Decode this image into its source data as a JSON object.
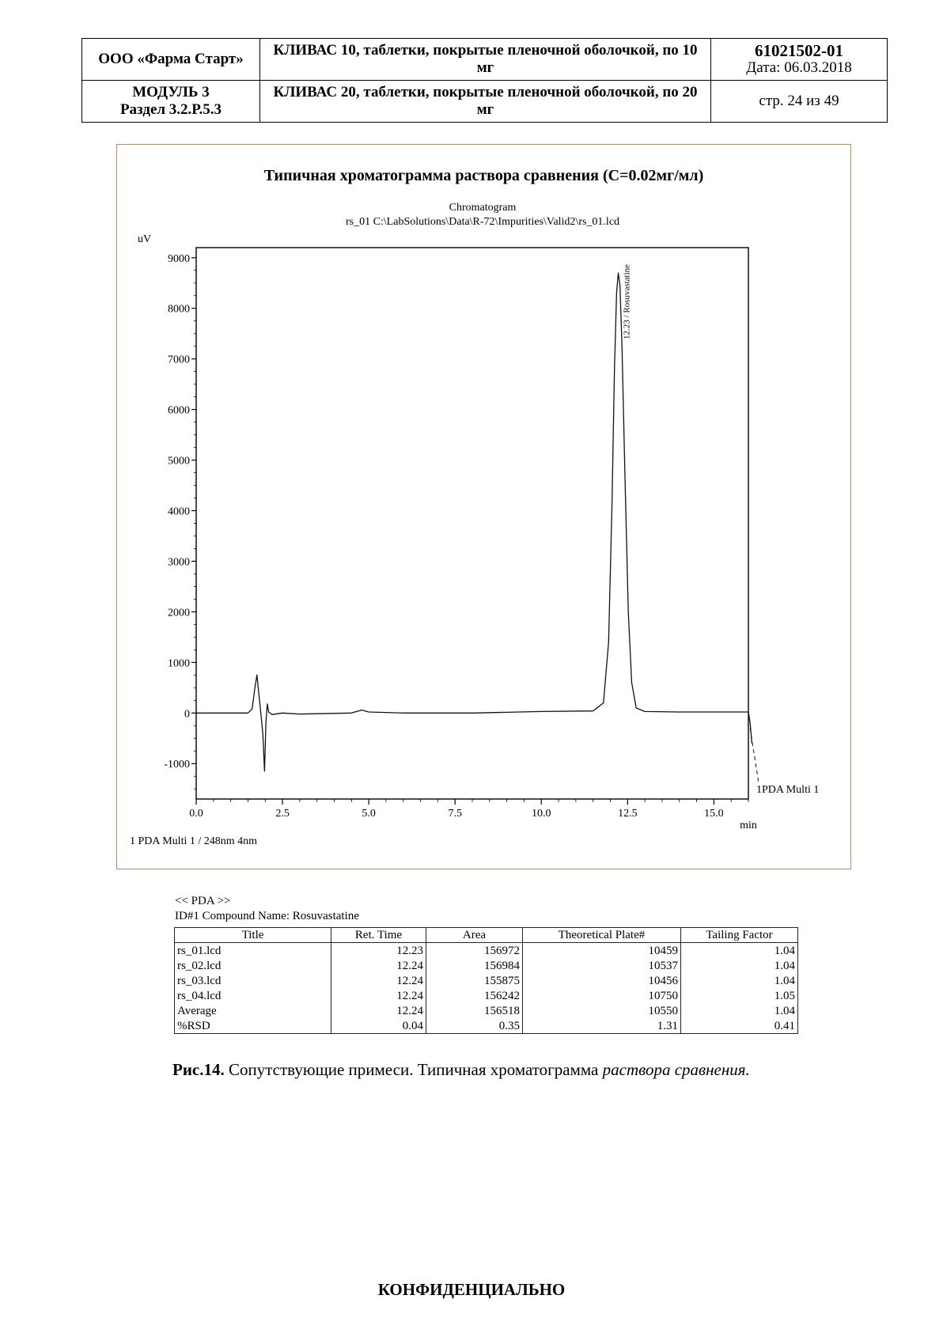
{
  "header": {
    "company": "ООО «Фарма Старт»",
    "module": "МОДУЛЬ 3",
    "section": "Раздел 3.2.Р.5.3",
    "product_10": "КЛИВАС 10, таблетки, покрытые пленочной оболочкой, по 10 мг",
    "product_20": "КЛИВАС 20, таблетки, покрытые пленочной оболочкой, по 20 мг",
    "doc_number": "61021502-01",
    "date": "Дата: 06.03.2018",
    "page": "стр. 24 из 49"
  },
  "chart_data": {
    "type": "line",
    "title": "Типичная хроматограмма раствора сравнения (С=0.02мг/мл)",
    "subtitle": "Chromatogram",
    "file_line": "rs_01 C:\\LabSolutions\\Data\\R-72\\Impurities\\Valid2\\rs_01.lcd",
    "ylabel": "uV",
    "xlabel": "min",
    "xlim": [
      0,
      16
    ],
    "ylim": [
      -1700,
      9200
    ],
    "xticks": [
      "0.0",
      "2.5",
      "5.0",
      "7.5",
      "10.0",
      "12.5",
      "15.0"
    ],
    "xtick_values": [
      0,
      2.5,
      5,
      7.5,
      10,
      12.5,
      15
    ],
    "yticks": [
      "9000",
      "8000",
      "7000",
      "6000",
      "5000",
      "4000",
      "3000",
      "2000",
      "1000",
      "0",
      "-1000"
    ],
    "ytick_values": [
      9000,
      8000,
      7000,
      6000,
      5000,
      4000,
      3000,
      2000,
      1000,
      0,
      -1000
    ],
    "peak_label": "12.23 / Rosuvastatine",
    "peak": {
      "x": 12.23,
      "y": 8700
    },
    "trace_label": "1PDA Multi 1",
    "channel_label": "1   PDA Multi 1 / 248nm 4nm",
    "series": [
      {
        "x": [
          0,
          1.5,
          1.62,
          1.7,
          1.76,
          1.82,
          1.88,
          1.93,
          1.98,
          2.02,
          2.06,
          2.1,
          2.2,
          2.5,
          3.0,
          4.5,
          4.8,
          5.0,
          6.0,
          8.0,
          10.0,
          11.5,
          11.8,
          11.95,
          12.05,
          12.12,
          12.18,
          12.23,
          12.28,
          12.34,
          12.42,
          12.52,
          12.62,
          12.75,
          13.0,
          14.0,
          15.5,
          16.0,
          16.05,
          16.1
        ],
        "y": [
          0,
          0,
          80,
          500,
          750,
          350,
          -50,
          -400,
          -1150,
          -200,
          180,
          20,
          -30,
          0,
          -20,
          0,
          60,
          20,
          0,
          0,
          30,
          40,
          200,
          1400,
          4200,
          6800,
          8300,
          8700,
          8450,
          7200,
          4800,
          2000,
          600,
          100,
          30,
          20,
          20,
          20,
          -200,
          -600
        ]
      }
    ]
  },
  "pda": {
    "title": "<< PDA >>",
    "compound": "ID#1 Compound Name: Rosuvastatine",
    "columns": [
      "Title",
      "Ret. Time",
      "Area",
      "Theoretical Plate#",
      "Tailing Factor"
    ],
    "rows": [
      [
        "rs_01.lcd",
        "12.23",
        "156972",
        "10459",
        "1.04"
      ],
      [
        "rs_02.lcd",
        "12.24",
        "156984",
        "10537",
        "1.04"
      ],
      [
        "rs_03.lcd",
        "12.24",
        "155875",
        "10456",
        "1.04"
      ],
      [
        "rs_04.lcd",
        "12.24",
        "156242",
        "10750",
        "1.05"
      ],
      [
        "Average",
        "12.24",
        "156518",
        "10550",
        "1.04"
      ],
      [
        "%RSD",
        "0.04",
        "0.35",
        "1.31",
        "0.41"
      ]
    ]
  },
  "caption": {
    "bold": "Рис.14.",
    "text": " Сопутствующие примеси. Типичная хроматограмма ",
    "italic": "раствора сравнения."
  },
  "footer": "КОНФИДЕНЦИАЛЬНО"
}
